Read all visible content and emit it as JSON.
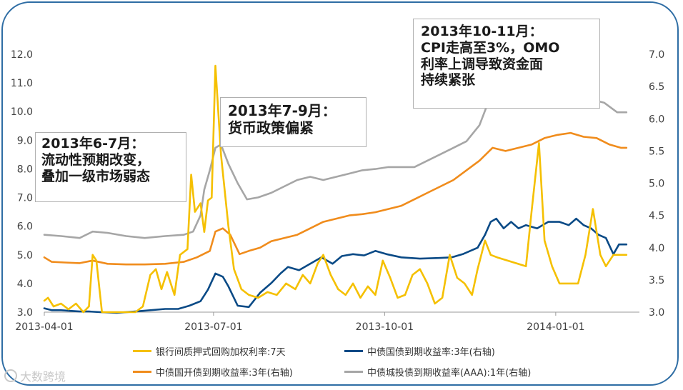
{
  "chart_data": {
    "type": "line",
    "title": "",
    "xlabel": "",
    "ylabel": "",
    "ylim": [
      3.0,
      12.0
    ],
    "y2lim": [
      3.0,
      7.0
    ],
    "y_ticks": [
      "3.0",
      "4.0",
      "5.0",
      "6.0",
      "7.0",
      "8.0",
      "9.0",
      "10.0",
      "11.0",
      "12.0"
    ],
    "y2_ticks": [
      "3.0",
      "3.5",
      "4.0",
      "4.5",
      "5.0",
      "5.5",
      "6.0",
      "6.5",
      "7.0"
    ],
    "x_ticks": [
      {
        "label": "2013-04-01",
        "date": "2013-04-01"
      },
      {
        "label": "2013-07-01",
        "date": "2013-07-01"
      },
      {
        "label": "2013-10-01",
        "date": "2013-10-01"
      },
      {
        "label": "2014-01-01",
        "date": "2014-01-01"
      }
    ],
    "x_range": [
      "2013-04-01",
      "2014-02-15"
    ],
    "grid": false,
    "legend_position": "bottom",
    "series": [
      {
        "name": "银行间质押式回购加权利率:7天",
        "axis": "left",
        "color": "#f5c000",
        "points": [
          [
            "2013-04-01",
            3.4
          ],
          [
            "2013-04-03",
            3.5
          ],
          [
            "2013-04-06",
            3.2
          ],
          [
            "2013-04-10",
            3.3
          ],
          [
            "2013-04-14",
            3.1
          ],
          [
            "2013-04-18",
            3.3
          ],
          [
            "2013-04-22",
            3.0
          ],
          [
            "2013-04-25",
            3.2
          ],
          [
            "2013-04-27",
            5.0
          ],
          [
            "2013-04-29",
            4.8
          ],
          [
            "2013-05-02",
            3.0
          ],
          [
            "2013-05-08",
            3.0
          ],
          [
            "2013-05-15",
            3.0
          ],
          [
            "2013-05-20",
            3.0
          ],
          [
            "2013-05-24",
            3.2
          ],
          [
            "2013-05-28",
            4.3
          ],
          [
            "2013-05-31",
            4.5
          ],
          [
            "2013-06-03",
            3.8
          ],
          [
            "2013-06-06",
            4.4
          ],
          [
            "2013-06-10",
            3.6
          ],
          [
            "2013-06-13",
            5.0
          ],
          [
            "2013-06-17",
            5.2
          ],
          [
            "2013-06-19",
            7.8
          ],
          [
            "2013-06-21",
            6.5
          ],
          [
            "2013-06-24",
            6.8
          ],
          [
            "2013-06-26",
            5.8
          ],
          [
            "2013-06-28",
            6.9
          ],
          [
            "2013-06-30",
            7.0
          ],
          [
            "2013-07-02",
            11.6
          ],
          [
            "2013-07-05",
            8.5
          ],
          [
            "2013-07-09",
            6.0
          ],
          [
            "2013-07-12",
            4.5
          ],
          [
            "2013-07-16",
            3.8
          ],
          [
            "2013-07-20",
            3.6
          ],
          [
            "2013-07-25",
            3.5
          ],
          [
            "2013-07-30",
            3.7
          ],
          [
            "2013-08-04",
            3.6
          ],
          [
            "2013-08-09",
            4.0
          ],
          [
            "2013-08-14",
            3.8
          ],
          [
            "2013-08-18",
            4.3
          ],
          [
            "2013-08-22",
            4.0
          ],
          [
            "2013-08-26",
            4.7
          ],
          [
            "2013-08-29",
            5.0
          ],
          [
            "2013-09-02",
            4.3
          ],
          [
            "2013-09-06",
            3.8
          ],
          [
            "2013-09-10",
            3.6
          ],
          [
            "2013-09-14",
            4.0
          ],
          [
            "2013-09-18",
            3.5
          ],
          [
            "2013-09-22",
            3.9
          ],
          [
            "2013-09-26",
            3.6
          ],
          [
            "2013-09-30",
            4.8
          ],
          [
            "2013-10-04",
            4.2
          ],
          [
            "2013-10-08",
            3.5
          ],
          [
            "2013-10-12",
            3.6
          ],
          [
            "2013-10-16",
            4.3
          ],
          [
            "2013-10-20",
            4.5
          ],
          [
            "2013-10-24",
            4.0
          ],
          [
            "2013-10-28",
            3.3
          ],
          [
            "2013-11-01",
            3.5
          ],
          [
            "2013-11-05",
            5.0
          ],
          [
            "2013-11-09",
            4.2
          ],
          [
            "2013-11-13",
            4.0
          ],
          [
            "2013-11-17",
            3.6
          ],
          [
            "2013-11-20",
            4.5
          ],
          [
            "2013-11-24",
            5.5
          ],
          [
            "2013-11-27",
            5.0
          ],
          [
            "2013-12-01",
            4.9
          ],
          [
            "2013-12-06",
            4.8
          ],
          [
            "2013-12-11",
            4.7
          ],
          [
            "2013-12-16",
            4.6
          ],
          [
            "2013-12-19",
            6.5
          ],
          [
            "2013-12-23",
            8.9
          ],
          [
            "2013-12-26",
            5.5
          ],
          [
            "2013-12-30",
            4.6
          ],
          [
            "2014-01-03",
            4.0
          ],
          [
            "2014-01-08",
            4.0
          ],
          [
            "2014-01-13",
            4.0
          ],
          [
            "2014-01-17",
            5.0
          ],
          [
            "2014-01-21",
            6.6
          ],
          [
            "2014-01-25",
            5.0
          ],
          [
            "2014-01-28",
            4.6
          ],
          [
            "2014-02-01",
            5.0
          ],
          [
            "2014-02-05",
            5.0
          ],
          [
            "2014-02-08",
            5.0
          ]
        ]
      },
      {
        "name": "中债国债到期收益率:3年(右轴)",
        "axis": "right",
        "color": "#0a4a86",
        "points": [
          [
            "2013-04-01",
            3.06
          ],
          [
            "2013-04-05",
            3.03
          ],
          [
            "2013-04-10",
            3.03
          ],
          [
            "2013-04-15",
            3.02
          ],
          [
            "2013-04-20",
            3.01
          ],
          [
            "2013-04-25",
            3.01
          ],
          [
            "2013-05-01",
            3.0
          ],
          [
            "2013-05-10",
            2.99
          ],
          [
            "2013-05-20",
            3.01
          ],
          [
            "2013-05-28",
            3.03
          ],
          [
            "2013-06-05",
            3.05
          ],
          [
            "2013-06-12",
            3.05
          ],
          [
            "2013-06-18",
            3.1
          ],
          [
            "2013-06-24",
            3.17
          ],
          [
            "2013-06-28",
            3.35
          ],
          [
            "2013-07-02",
            3.6
          ],
          [
            "2013-07-06",
            3.55
          ],
          [
            "2013-07-09",
            3.4
          ],
          [
            "2013-07-14",
            3.1
          ],
          [
            "2013-07-20",
            3.08
          ],
          [
            "2013-07-26",
            3.3
          ],
          [
            "2013-08-01",
            3.45
          ],
          [
            "2013-08-06",
            3.6
          ],
          [
            "2013-08-10",
            3.7
          ],
          [
            "2013-08-16",
            3.65
          ],
          [
            "2013-08-22",
            3.75
          ],
          [
            "2013-08-28",
            3.85
          ],
          [
            "2013-09-03",
            3.75
          ],
          [
            "2013-09-08",
            3.87
          ],
          [
            "2013-09-14",
            3.9
          ],
          [
            "2013-09-20",
            3.88
          ],
          [
            "2013-09-26",
            3.95
          ],
          [
            "2013-10-02",
            3.9
          ],
          [
            "2013-10-10",
            3.85
          ],
          [
            "2013-10-20",
            3.83
          ],
          [
            "2013-10-30",
            3.84
          ],
          [
            "2013-11-06",
            3.85
          ],
          [
            "2013-11-12",
            3.9
          ],
          [
            "2013-11-16",
            3.95
          ],
          [
            "2013-11-20",
            4.0
          ],
          [
            "2013-11-24",
            4.2
          ],
          [
            "2013-11-27",
            4.4
          ],
          [
            "2013-11-30",
            4.45
          ],
          [
            "2013-12-04",
            4.3
          ],
          [
            "2013-12-08",
            4.4
          ],
          [
            "2013-12-12",
            4.3
          ],
          [
            "2013-12-16",
            4.35
          ],
          [
            "2013-12-22",
            4.3
          ],
          [
            "2013-12-28",
            4.4
          ],
          [
            "2014-01-03",
            4.4
          ],
          [
            "2014-01-08",
            4.35
          ],
          [
            "2014-01-12",
            4.45
          ],
          [
            "2014-01-16",
            4.35
          ],
          [
            "2014-01-20",
            4.3
          ],
          [
            "2014-01-24",
            4.2
          ],
          [
            "2014-01-28",
            4.15
          ],
          [
            "2014-02-01",
            3.9
          ],
          [
            "2014-02-04",
            4.05
          ],
          [
            "2014-02-08",
            4.05
          ]
        ]
      },
      {
        "name": "中债国开债到期收益率:3年(右轴)",
        "axis": "right",
        "color": "#f08c1c",
        "points": [
          [
            "2013-04-01",
            3.85
          ],
          [
            "2013-04-05",
            3.78
          ],
          [
            "2013-04-12",
            3.77
          ],
          [
            "2013-04-20",
            3.76
          ],
          [
            "2013-04-27",
            3.8
          ],
          [
            "2013-05-05",
            3.75
          ],
          [
            "2013-05-15",
            3.74
          ],
          [
            "2013-05-25",
            3.74
          ],
          [
            "2013-06-05",
            3.75
          ],
          [
            "2013-06-15",
            3.78
          ],
          [
            "2013-06-22",
            3.85
          ],
          [
            "2013-06-29",
            3.95
          ],
          [
            "2013-07-02",
            4.25
          ],
          [
            "2013-07-06",
            4.3
          ],
          [
            "2013-07-10",
            4.2
          ],
          [
            "2013-07-15",
            3.9
          ],
          [
            "2013-07-20",
            3.95
          ],
          [
            "2013-07-26",
            4.0
          ],
          [
            "2013-08-01",
            4.1
          ],
          [
            "2013-08-08",
            4.15
          ],
          [
            "2013-08-15",
            4.2
          ],
          [
            "2013-08-22",
            4.3
          ],
          [
            "2013-08-29",
            4.4
          ],
          [
            "2013-09-05",
            4.45
          ],
          [
            "2013-09-12",
            4.5
          ],
          [
            "2013-09-19",
            4.52
          ],
          [
            "2013-09-26",
            4.55
          ],
          [
            "2013-10-03",
            4.6
          ],
          [
            "2013-10-10",
            4.65
          ],
          [
            "2013-10-17",
            4.75
          ],
          [
            "2013-10-24",
            4.85
          ],
          [
            "2013-10-31",
            4.95
          ],
          [
            "2013-11-07",
            5.05
          ],
          [
            "2013-11-14",
            5.2
          ],
          [
            "2013-11-21",
            5.35
          ],
          [
            "2013-11-28",
            5.55
          ],
          [
            "2013-12-05",
            5.5
          ],
          [
            "2013-12-12",
            5.55
          ],
          [
            "2013-12-19",
            5.6
          ],
          [
            "2013-12-26",
            5.7
          ],
          [
            "2014-01-02",
            5.75
          ],
          [
            "2014-01-09",
            5.78
          ],
          [
            "2014-01-16",
            5.72
          ],
          [
            "2014-01-23",
            5.7
          ],
          [
            "2014-01-30",
            5.6
          ],
          [
            "2014-02-05",
            5.55
          ],
          [
            "2014-02-08",
            5.55
          ]
        ]
      },
      {
        "name": "中债城投债到期收益率(AAA):1年(右轴)",
        "axis": "right",
        "color": "#a6a6a6",
        "points": [
          [
            "2013-04-01",
            4.2
          ],
          [
            "2013-04-10",
            4.18
          ],
          [
            "2013-04-20",
            4.15
          ],
          [
            "2013-04-27",
            4.25
          ],
          [
            "2013-05-05",
            4.23
          ],
          [
            "2013-05-15",
            4.18
          ],
          [
            "2013-05-25",
            4.15
          ],
          [
            "2013-06-05",
            4.18
          ],
          [
            "2013-06-15",
            4.2
          ],
          [
            "2013-06-20",
            4.25
          ],
          [
            "2013-06-24",
            4.5
          ],
          [
            "2013-06-26",
            4.9
          ],
          [
            "2013-06-29",
            5.2
          ],
          [
            "2013-07-02",
            5.55
          ],
          [
            "2013-07-05",
            5.6
          ],
          [
            "2013-07-09",
            5.3
          ],
          [
            "2013-07-14",
            5.0
          ],
          [
            "2013-07-19",
            4.75
          ],
          [
            "2013-07-25",
            4.78
          ],
          [
            "2013-08-01",
            4.85
          ],
          [
            "2013-08-08",
            4.95
          ],
          [
            "2013-08-15",
            5.05
          ],
          [
            "2013-08-22",
            5.1
          ],
          [
            "2013-08-29",
            5.05
          ],
          [
            "2013-09-05",
            5.1
          ],
          [
            "2013-09-12",
            5.15
          ],
          [
            "2013-09-19",
            5.2
          ],
          [
            "2013-09-26",
            5.22
          ],
          [
            "2013-10-03",
            5.25
          ],
          [
            "2013-10-10",
            5.25
          ],
          [
            "2013-10-17",
            5.25
          ],
          [
            "2013-10-24",
            5.35
          ],
          [
            "2013-10-31",
            5.45
          ],
          [
            "2013-11-07",
            5.55
          ],
          [
            "2013-11-14",
            5.65
          ],
          [
            "2013-11-21",
            5.9
          ],
          [
            "2013-11-25",
            6.2
          ],
          [
            "2013-11-28",
            6.3
          ],
          [
            "2013-12-02",
            6.3
          ],
          [
            "2013-12-09",
            6.33
          ],
          [
            "2013-12-16",
            6.35
          ],
          [
            "2013-12-23",
            6.45
          ],
          [
            "2013-12-30",
            6.5
          ],
          [
            "2014-01-06",
            6.45
          ],
          [
            "2014-01-13",
            6.4
          ],
          [
            "2014-01-20",
            6.3
          ],
          [
            "2014-01-27",
            6.25
          ],
          [
            "2014-02-03",
            6.1
          ],
          [
            "2014-02-08",
            6.1
          ]
        ]
      }
    ],
    "annotations": [
      {
        "lines": [
          "2013年6-7月：",
          "流动性预期改变，",
          "叠加一级市场弱态"
        ]
      },
      {
        "lines": [
          "2013年7-9月：",
          "货币政策偏紧"
        ]
      },
      {
        "lines": [
          "2013年10-11月：",
          "CPI走高至3%，OMO",
          "利率上调导致资金面",
          "持续紧张"
        ]
      }
    ]
  },
  "watermark": {
    "text": "大数跨境"
  }
}
